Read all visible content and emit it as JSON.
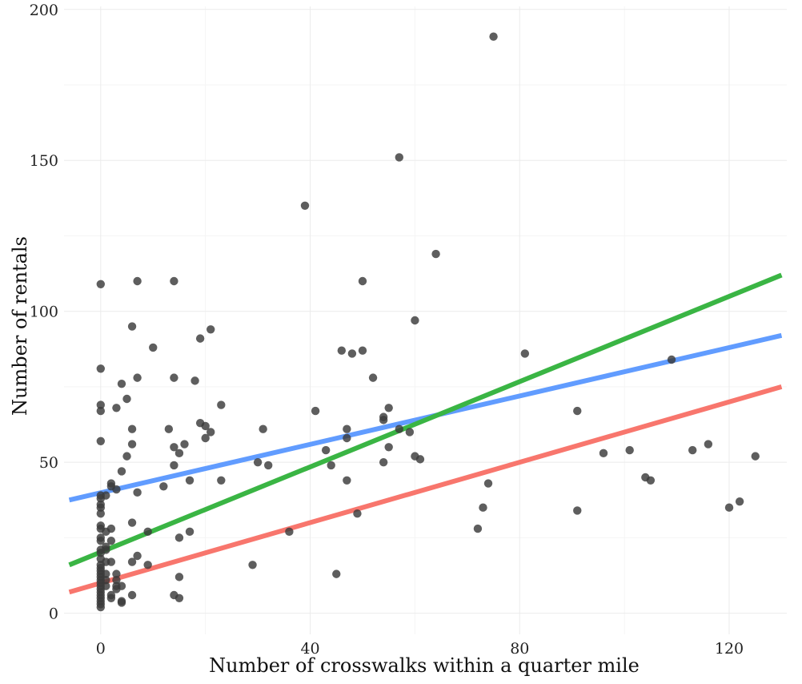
{
  "chart_data": {
    "type": "scatter",
    "title": "",
    "xlabel": "Number of crosswalks within a quarter mile",
    "ylabel": "Number of rentals",
    "xlim": [
      -7,
      131
    ],
    "ylim": [
      -7,
      201
    ],
    "x_ticks": [
      0,
      40,
      80,
      120
    ],
    "y_ticks": [
      0,
      50,
      100,
      150,
      200
    ],
    "grid": true,
    "point_color": "#3a3a3a",
    "points": [
      [
        0,
        109
      ],
      [
        0,
        81
      ],
      [
        0,
        69
      ],
      [
        0,
        67
      ],
      [
        0,
        57
      ],
      [
        0,
        39
      ],
      [
        0,
        38
      ],
      [
        0,
        36
      ],
      [
        0,
        35
      ],
      [
        0,
        33
      ],
      [
        0,
        29
      ],
      [
        0,
        28
      ],
      [
        0,
        25
      ],
      [
        0,
        24
      ],
      [
        0,
        21
      ],
      [
        0,
        20
      ],
      [
        0,
        18
      ],
      [
        0,
        16
      ],
      [
        0,
        15
      ],
      [
        0,
        14
      ],
      [
        0,
        13
      ],
      [
        0,
        12
      ],
      [
        0,
        11
      ],
      [
        0,
        10
      ],
      [
        0,
        9
      ],
      [
        0,
        8
      ],
      [
        0,
        7
      ],
      [
        0,
        6
      ],
      [
        0,
        5
      ],
      [
        0,
        4
      ],
      [
        0,
        3
      ],
      [
        0,
        2
      ],
      [
        1,
        39
      ],
      [
        1,
        27
      ],
      [
        1,
        22
      ],
      [
        1,
        21
      ],
      [
        1,
        17
      ],
      [
        1,
        13
      ],
      [
        1,
        11
      ],
      [
        1,
        9
      ],
      [
        2,
        43
      ],
      [
        2,
        42
      ],
      [
        2,
        28
      ],
      [
        2,
        24
      ],
      [
        2,
        17
      ],
      [
        2,
        6
      ],
      [
        2,
        5
      ],
      [
        3,
        41
      ],
      [
        3,
        68
      ],
      [
        3,
        13
      ],
      [
        3,
        11
      ],
      [
        3,
        9
      ],
      [
        3,
        8
      ],
      [
        4,
        76
      ],
      [
        4,
        47
      ],
      [
        4,
        9
      ],
      [
        4,
        4
      ],
      [
        4,
        3.5
      ],
      [
        5,
        71
      ],
      [
        5,
        52
      ],
      [
        6,
        95
      ],
      [
        6,
        61
      ],
      [
        6,
        56
      ],
      [
        6,
        30
      ],
      [
        6,
        17
      ],
      [
        6,
        6
      ],
      [
        7,
        110
      ],
      [
        7,
        78
      ],
      [
        7,
        40
      ],
      [
        7,
        19
      ],
      [
        9,
        27
      ],
      [
        9,
        16
      ],
      [
        10,
        88
      ],
      [
        12,
        42
      ],
      [
        13,
        61
      ],
      [
        14,
        110
      ],
      [
        14,
        78
      ],
      [
        14,
        55
      ],
      [
        14,
        49
      ],
      [
        14,
        6
      ],
      [
        15,
        53
      ],
      [
        15,
        25
      ],
      [
        15,
        12
      ],
      [
        15,
        5
      ],
      [
        16,
        56
      ],
      [
        17,
        44
      ],
      [
        17,
        27
      ],
      [
        18,
        77
      ],
      [
        19,
        91
      ],
      [
        19,
        63
      ],
      [
        20,
        62
      ],
      [
        20,
        58
      ],
      [
        21,
        94
      ],
      [
        21,
        60
      ],
      [
        23,
        69
      ],
      [
        23,
        44
      ],
      [
        29,
        16
      ],
      [
        30,
        50
      ],
      [
        31,
        61
      ],
      [
        32,
        49
      ],
      [
        36,
        27
      ],
      [
        39,
        135
      ],
      [
        41,
        67
      ],
      [
        43,
        54
      ],
      [
        44,
        49
      ],
      [
        45,
        13
      ],
      [
        46,
        87
      ],
      [
        47,
        61
      ],
      [
        47,
        58
      ],
      [
        47,
        44
      ],
      [
        48,
        86
      ],
      [
        49,
        33
      ],
      [
        50,
        110
      ],
      [
        50,
        87
      ],
      [
        52,
        78
      ],
      [
        54,
        65
      ],
      [
        54,
        64
      ],
      [
        54,
        50
      ],
      [
        55,
        68
      ],
      [
        55,
        55
      ],
      [
        57,
        151
      ],
      [
        57,
        61
      ],
      [
        59,
        60
      ],
      [
        60,
        97
      ],
      [
        60,
        52
      ],
      [
        61,
        51
      ],
      [
        64,
        119
      ],
      [
        72,
        28
      ],
      [
        73,
        35
      ],
      [
        74,
        43
      ],
      [
        75,
        191
      ],
      [
        81,
        86
      ],
      [
        91,
        67
      ],
      [
        91,
        34
      ],
      [
        96,
        53
      ],
      [
        101,
        54
      ],
      [
        104,
        45
      ],
      [
        105,
        44
      ],
      [
        109,
        84
      ],
      [
        113,
        54
      ],
      [
        116,
        56
      ],
      [
        120,
        35
      ],
      [
        122,
        37
      ],
      [
        125,
        52
      ]
    ],
    "lines": [
      {
        "color": "#f8766d",
        "x": [
          -6,
          130
        ],
        "y": [
          7,
          75
        ]
      },
      {
        "color": "#619cff",
        "x": [
          -6,
          130
        ],
        "y": [
          37.5,
          92
        ]
      },
      {
        "color": "#3ab544",
        "x": [
          -6,
          130
        ],
        "y": [
          16,
          112
        ]
      }
    ]
  }
}
